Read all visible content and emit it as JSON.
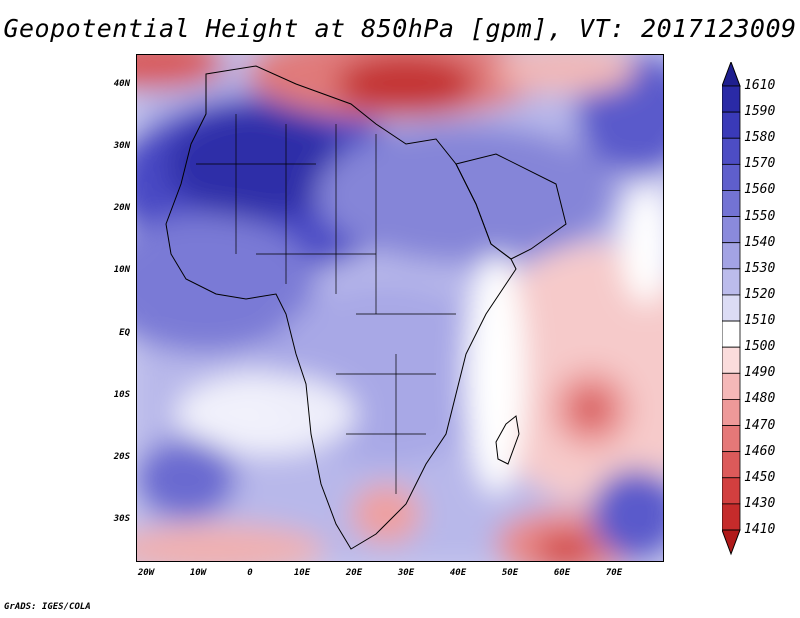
{
  "title": "Geopotential Height at 850hPa [gpm], VT: 2017123009",
  "footer": "GrADS: IGES/COLA",
  "map": {
    "lat_labels": [
      "40N",
      "30N",
      "20N",
      "10N",
      "EQ",
      "10S",
      "20S",
      "30S"
    ],
    "lon_labels": [
      "20W",
      "10W",
      "0",
      "10E",
      "20E",
      "30E",
      "40E",
      "50E",
      "60E",
      "70E"
    ]
  },
  "colorbar": {
    "labels": [
      "1610",
      "1590",
      "1580",
      "1570",
      "1560",
      "1550",
      "1540",
      "1530",
      "1520",
      "1510",
      "1500",
      "1490",
      "1480",
      "1470",
      "1460",
      "1450",
      "1430",
      "1410"
    ],
    "colors": [
      "#1f1f8f",
      "#2a2aa6",
      "#3a3ab8",
      "#4d4dc4",
      "#5f5fcc",
      "#7373d4",
      "#8a8adc",
      "#a3a3e4",
      "#bcbcec",
      "#dcdcf5",
      "#ffffff",
      "#fbdcdc",
      "#f5b8b8",
      "#ee9999",
      "#e57878",
      "#dc5a5a",
      "#d23f3f",
      "#c52b2b",
      "#b01a1a"
    ]
  }
}
